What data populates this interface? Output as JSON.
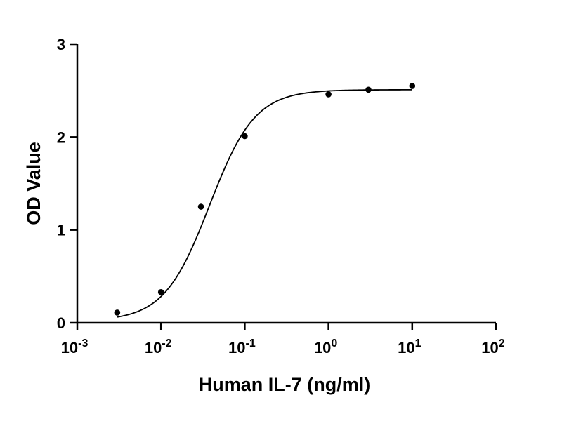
{
  "chart_data": {
    "type": "scatter",
    "xscale": "log",
    "xlim": [
      0.001,
      100
    ],
    "ylim": [
      0,
      3
    ],
    "xlabel": "Human IL-7 (ng/ml)",
    "ylabel": "OD Value",
    "grid": false,
    "x_ticks": [
      {
        "base": "10",
        "exp": "-3",
        "value": 0.001
      },
      {
        "base": "10",
        "exp": "-2",
        "value": 0.01
      },
      {
        "base": "10",
        "exp": "-1",
        "value": 0.1
      },
      {
        "base": "10",
        "exp": "0",
        "value": 1
      },
      {
        "base": "10",
        "exp": "1",
        "value": 10
      },
      {
        "base": "10",
        "exp": "2",
        "value": 100
      }
    ],
    "y_ticks": [
      {
        "label": "0",
        "value": 0
      },
      {
        "label": "1",
        "value": 1
      },
      {
        "label": "2",
        "value": 2
      },
      {
        "label": "3",
        "value": 3
      }
    ],
    "points": [
      {
        "x": 0.003,
        "y": 0.11
      },
      {
        "x": 0.01,
        "y": 0.33
      },
      {
        "x": 0.03,
        "y": 1.25
      },
      {
        "x": 0.1,
        "y": 2.01
      },
      {
        "x": 1,
        "y": 2.46
      },
      {
        "x": 3,
        "y": 2.51
      },
      {
        "x": 10,
        "y": 2.55
      }
    ],
    "fit_curve": {
      "model": "4PL",
      "bottom": 0.02,
      "top": 2.51,
      "ec50": 0.038,
      "hill": 1.6,
      "x_range": [
        0.003,
        10
      ]
    }
  }
}
